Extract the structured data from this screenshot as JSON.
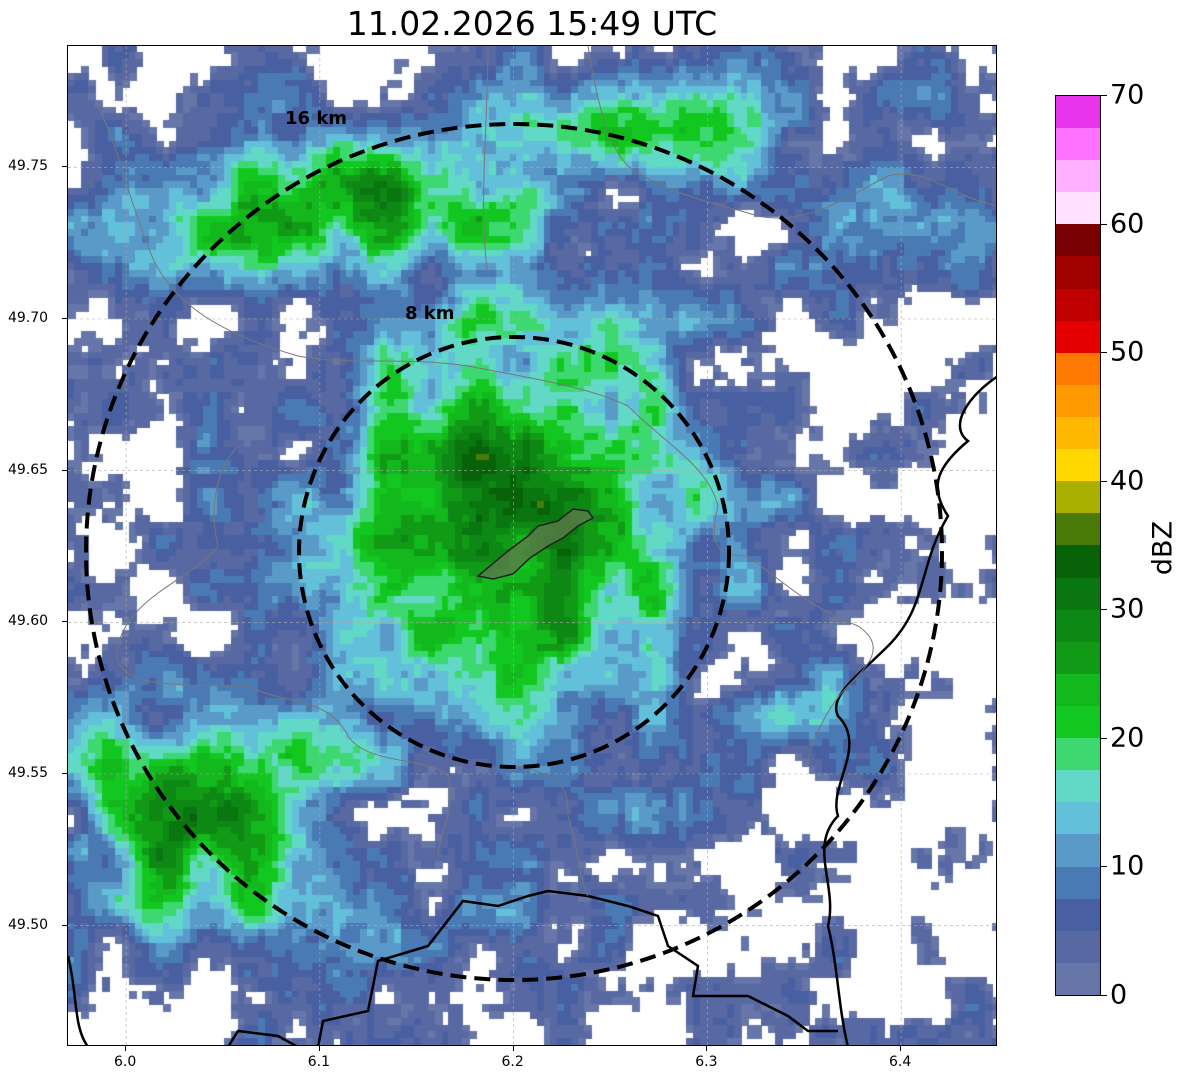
{
  "title": "11.02.2026 15:49 UTC",
  "rings": [
    {
      "label": "16 km",
      "radius_km": 16
    },
    {
      "label": "8 km",
      "radius_km": 8
    }
  ],
  "x_ticks": [
    "6.0",
    "6.1",
    "6.2",
    "6.3",
    "6.4"
  ],
  "y_ticks": [
    "49.75",
    "49.70",
    "49.65",
    "49.60",
    "49.55",
    "49.50"
  ],
  "colorbar": {
    "label": "dBZ",
    "ticks": [
      "0",
      "10",
      "20",
      "30",
      "40",
      "50",
      "60",
      "70"
    ],
    "colors": [
      "#6676a8",
      "#5868a2",
      "#4860a2",
      "#4a7ab4",
      "#5a9ac8",
      "#62c0da",
      "#62d8c6",
      "#3ed870",
      "#12c820",
      "#12b81c",
      "#109a16",
      "#0e8814",
      "#0a7610",
      "#086208",
      "#4a7a08",
      "#aab000",
      "#ffd800",
      "#ffb800",
      "#ff9a00",
      "#ff7800",
      "#e40000",
      "#c00000",
      "#a00000",
      "#780000",
      "#ffe0ff",
      "#ffb0ff",
      "#ff72ff",
      "#e834ea"
    ]
  },
  "chart_data": {
    "type": "heatmap",
    "title": "11.02.2026 15:49 UTC",
    "xlabel": "",
    "ylabel": "",
    "xlim": [
      5.97,
      6.45
    ],
    "ylim": [
      49.46,
      49.79
    ],
    "x_ticks": [
      6.0,
      6.1,
      6.2,
      6.3,
      6.4
    ],
    "y_ticks": [
      49.75,
      49.7,
      49.65,
      49.6,
      49.55,
      49.5
    ],
    "center": [
      6.2,
      49.6235
    ],
    "ring_radii_km": [
      8,
      16
    ],
    "value_label": "dBZ",
    "value_range": [
      0,
      70
    ],
    "bin_width": 2.5,
    "grid": true
  }
}
